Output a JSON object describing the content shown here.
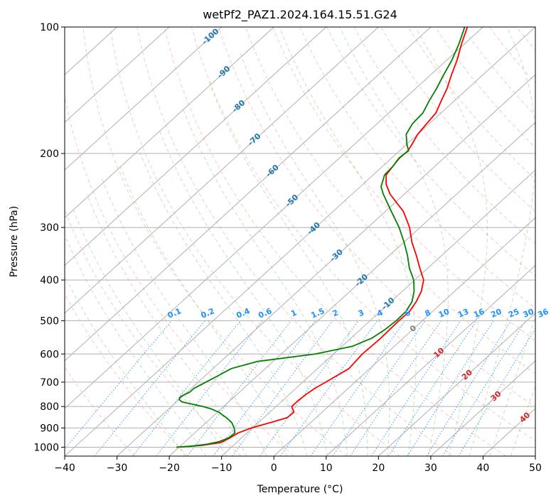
{
  "chart_data": {
    "type": "line",
    "title": "wetPf2_PAZ1.2024.164.15.51.G24",
    "xlabel": "Temperature (°C)",
    "ylabel": "Pressure (hPa)",
    "xlim": [
      -40,
      50
    ],
    "ylim": [
      1050,
      100
    ],
    "y_scale": "log",
    "grid": true,
    "x_ticks": [
      -40,
      -30,
      -20,
      -10,
      0,
      10,
      20,
      30,
      40,
      50
    ],
    "x_tick_labels": [
      "−40",
      "−30",
      "−20",
      "−10",
      "0",
      "10",
      "20",
      "30",
      "40",
      "50"
    ],
    "y_ticks": [
      100,
      200,
      300,
      400,
      500,
      600,
      700,
      800,
      900,
      1000
    ],
    "y_tick_labels": [
      "100",
      "200",
      "300",
      "400",
      "500",
      "600",
      "700",
      "800",
      "900",
      "1000"
    ],
    "series": [
      {
        "color": "#ff0000",
        "pressure": [
          1000,
          990,
          975,
          950,
          925,
          900,
          875,
          850,
          825,
          800,
          775,
          750,
          725,
          700,
          650,
          600,
          550,
          500,
          475,
          450,
          425,
          400,
          375,
          350,
          325,
          300,
          275,
          250,
          237,
          225,
          215,
          205,
          197,
          190,
          180,
          170,
          160,
          150,
          140,
          130,
          120,
          110,
          100
        ],
        "values": [
          -20.5,
          -16,
          -13,
          -12.2,
          -11.7,
          -10.2,
          -7.8,
          -5.5,
          -5.4,
          -7.0,
          -7.0,
          -6.8,
          -6.4,
          -5.6,
          -4.0,
          -4.5,
          -4.3,
          -4.5,
          -4.4,
          -5.2,
          -6.4,
          -8.3,
          -11.5,
          -14.8,
          -18.5,
          -22.0,
          -26.5,
          -32.7,
          -35.5,
          -37.5,
          -38.0,
          -38.5,
          -38.4,
          -39.0,
          -40.0,
          -40.5,
          -41.0,
          -42.5,
          -44.0,
          -46.0,
          -48.0,
          -50.5,
          -53.0
        ]
      },
      {
        "color": "#008000",
        "pressure": [
          1000,
          995,
          985,
          970,
          950,
          925,
          900,
          875,
          850,
          825,
          810,
          800,
          790,
          780,
          770,
          760,
          750,
          740,
          725,
          700,
          675,
          650,
          625,
          600,
          575,
          550,
          525,
          500,
          475,
          450,
          425,
          400,
          375,
          350,
          325,
          300,
          275,
          250,
          240,
          225,
          215,
          205,
          197,
          190,
          180,
          170,
          160,
          150,
          140,
          130,
          120,
          110,
          100
        ],
        "values": [
          -20.5,
          -18,
          -15.5,
          -13.5,
          -12.5,
          -12.3,
          -13.5,
          -15.0,
          -17.2,
          -19.8,
          -22.0,
          -24.0,
          -26.5,
          -29.0,
          -30.0,
          -30.3,
          -30.0,
          -29.5,
          -29.5,
          -28.5,
          -27.5,
          -26.5,
          -23.0,
          -13.5,
          -8.0,
          -6.0,
          -5.3,
          -5.0,
          -5.1,
          -6.0,
          -7.8,
          -10.2,
          -13.5,
          -16.5,
          -20.0,
          -24.0,
          -28.8,
          -34.0,
          -36.0,
          -37.8,
          -38.0,
          -38.6,
          -38.3,
          -40.0,
          -42.2,
          -43.2,
          -43.5,
          -44.8,
          -46.0,
          -47.5,
          -49.0,
          -51.0,
          -53.5
        ]
      }
    ],
    "background": {
      "dry_adiabats": true,
      "moist_adiabats": true,
      "isotherms": true,
      "mixing_ratio_lines": true
    },
    "isotherm_labels": [
      {
        "value": -100,
        "text": "-100"
      },
      {
        "value": -90,
        "text": "-90"
      },
      {
        "value": -80,
        "text": "-80"
      },
      {
        "value": -70,
        "text": "-70"
      },
      {
        "value": -60,
        "text": "-60"
      },
      {
        "value": -50,
        "text": "-50"
      },
      {
        "value": -40,
        "text": "-40"
      },
      {
        "value": -30,
        "text": "-30"
      },
      {
        "value": -20,
        "text": "-20"
      },
      {
        "value": -10,
        "text": "-10"
      },
      {
        "value": 0,
        "text": "0"
      },
      {
        "value": 10,
        "text": "10"
      },
      {
        "value": 20,
        "text": "20"
      },
      {
        "value": 30,
        "text": "30"
      },
      {
        "value": 40,
        "text": "40"
      }
    ],
    "mixing_ratio_labels": [
      "0.1",
      "0.2",
      "0.4",
      "0.6",
      "1",
      "1.5",
      "2",
      "3",
      "4",
      "6",
      "8",
      "10",
      "13",
      "16",
      "20",
      "25",
      "30",
      "36"
    ],
    "colors": {
      "temperature": "#ff0000",
      "dewpoint": "#008000",
      "isotherm_label_cold": "#1f77b4",
      "isotherm_label_zero": "#808080",
      "isotherm_label_warm": "#d62728",
      "mixing_ratio": "#1e90ff",
      "dry_adiabat": "#fa8072",
      "moist_adiabat": "#2ca02c",
      "grid": "#b0b0b0"
    }
  }
}
